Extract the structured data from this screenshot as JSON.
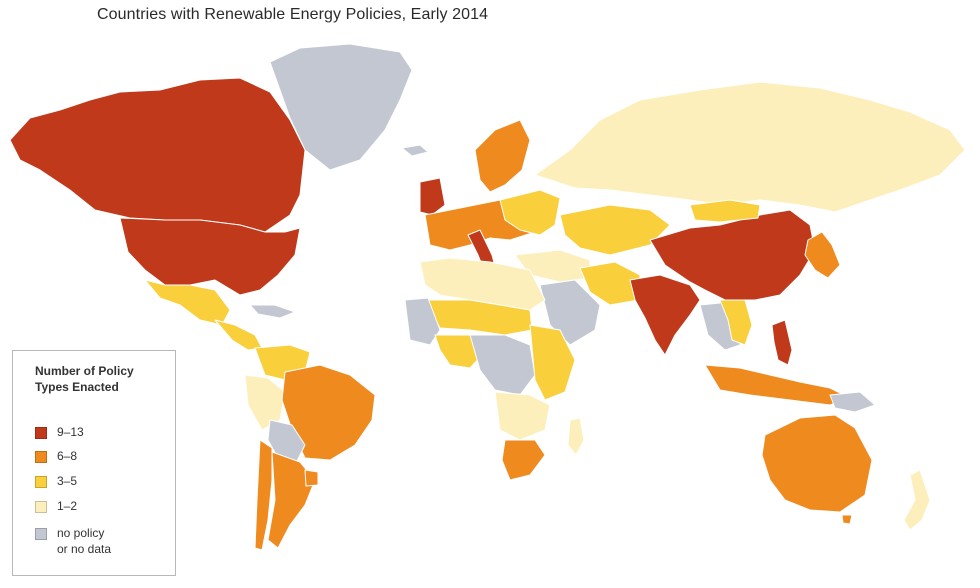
{
  "map": {
    "title": "Countries with Renewable Energy Policies, Early 2014"
  },
  "legend": {
    "title_line1": "Number of Policy",
    "title_line2": "Types Enacted",
    "items": [
      {
        "label": "9–13",
        "color": "#c0391b"
      },
      {
        "label": "6–8",
        "color": "#ef8a1f"
      },
      {
        "label": "3–5",
        "color": "#f9cf3c"
      },
      {
        "label": "1–2",
        "color": "#fdefbb"
      },
      {
        "label": "no policy",
        "label2": "or no data",
        "color": "#c3c7d2"
      }
    ]
  },
  "colors": {
    "ocean": "#ffffff",
    "very_high": "#c0391b",
    "high": "#ef8a1f",
    "medium": "#f9cf3c",
    "low": "#fdefbb",
    "none": "#c3c7d2"
  }
}
